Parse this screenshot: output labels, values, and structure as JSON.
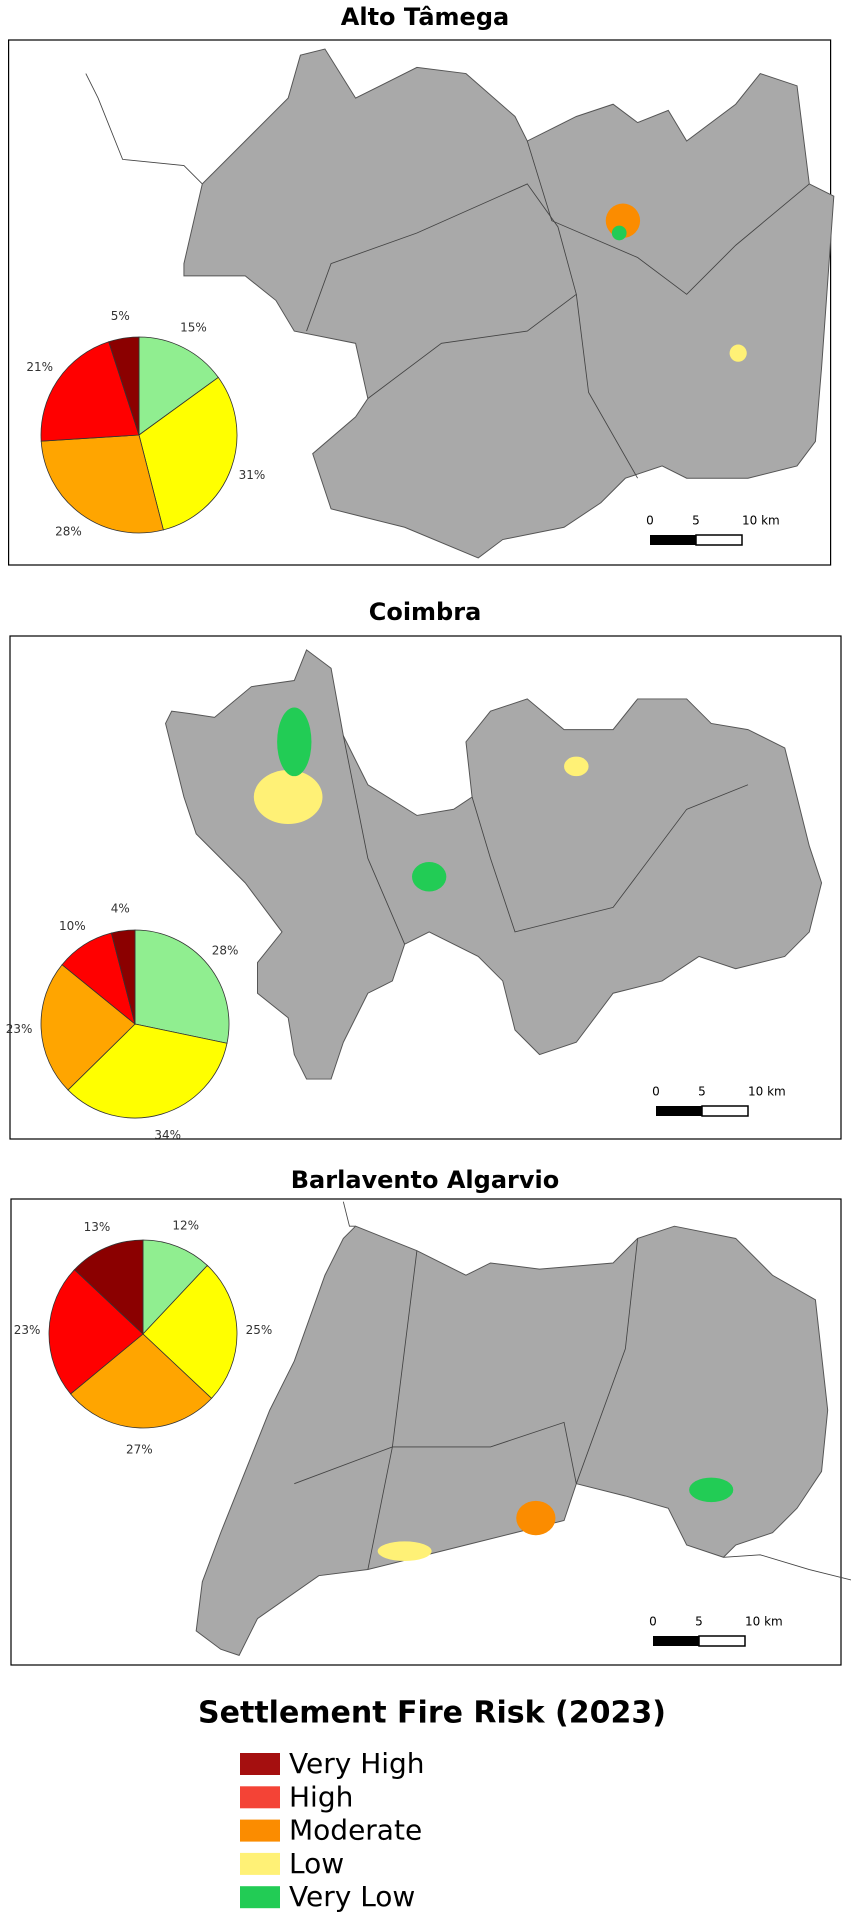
{
  "chart_data": [
    {
      "type": "pie",
      "title": "Alto Tâmega",
      "values": [
        15,
        31,
        28,
        21,
        5
      ],
      "value_labels": [
        "15%",
        "31%",
        "28%",
        "21%",
        "5%"
      ],
      "colors": [
        "#90ee90",
        "#ffff00",
        "#ffa500",
        "#ff0000",
        "#8b0000"
      ],
      "scale_bar": [
        "0",
        "5",
        "10 km"
      ]
    },
    {
      "type": "pie",
      "title": "Coimbra",
      "values": [
        28,
        34,
        23,
        10,
        4
      ],
      "value_labels": [
        "28%",
        "34%",
        "23%",
        "10%",
        "4%"
      ],
      "colors": [
        "#90ee90",
        "#ffff00",
        "#ffa500",
        "#ff0000",
        "#8b0000"
      ],
      "scale_bar": [
        "0",
        "5",
        "10 km"
      ]
    },
    {
      "type": "pie",
      "title": "Barlavento Algarvio",
      "values": [
        12,
        25,
        27,
        23,
        13
      ],
      "value_labels": [
        "12%",
        "25%",
        "27%",
        "23%",
        "13%"
      ],
      "colors": [
        "#90ee90",
        "#ffff00",
        "#ffa500",
        "#ff0000",
        "#8b0000"
      ],
      "scale_bar": [
        "0",
        "5",
        "10 km"
      ]
    }
  ],
  "legend": {
    "title": "Settlement Fire Risk (2023)",
    "items": [
      {
        "name": "Very High",
        "color": "#a50f0f"
      },
      {
        "name": "High",
        "color": "#f44336"
      },
      {
        "name": "Moderate",
        "color": "#fb8c00"
      },
      {
        "name": "Low",
        "color": "#fff176"
      },
      {
        "name": "Very Low",
        "color": "#22cc55"
      }
    ]
  }
}
